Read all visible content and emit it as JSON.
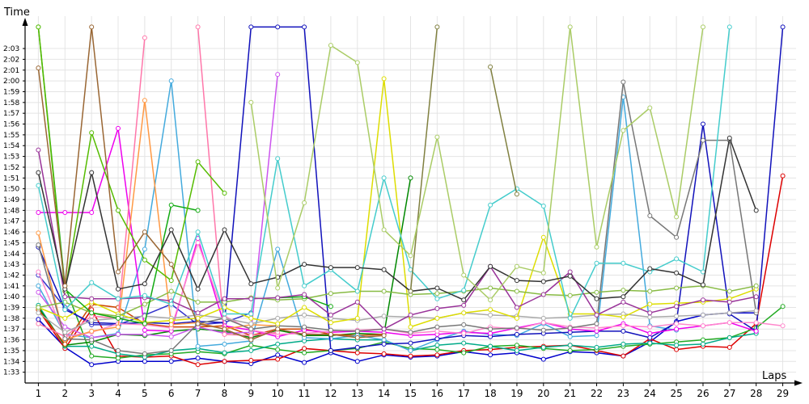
{
  "chart_data": {
    "type": "line",
    "xlabel": "Laps",
    "ylabel": "Time",
    "x": [
      1,
      2,
      3,
      4,
      5,
      6,
      7,
      8,
      9,
      10,
      11,
      12,
      13,
      14,
      15,
      16,
      17,
      18,
      19,
      20,
      21,
      22,
      23,
      24,
      25,
      26,
      27,
      28,
      29
    ],
    "y_tick_labels": [
      "1:33",
      "1:34",
      "1:35",
      "1:36",
      "1:37",
      "1:38",
      "1:39",
      "1:40",
      "1:41",
      "1:42",
      "1:43",
      "1:44",
      "1:45",
      "1:46",
      "1:47",
      "1:48",
      "1:49",
      "1:50",
      "1:51",
      "1:52",
      "1:53",
      "1:54",
      "1:55",
      "1:56",
      "1:57",
      "1:58",
      "1:59",
      "2:00",
      "2:01",
      "2:02",
      "2:03"
    ],
    "y_tick_values": [
      93,
      94,
      95,
      96,
      97,
      98,
      99,
      100,
      101,
      102,
      103,
      104,
      105,
      106,
      107,
      108,
      109,
      110,
      111,
      112,
      113,
      114,
      115,
      116,
      117,
      118,
      119,
      120,
      121,
      122,
      123
    ],
    "ylim": [
      92,
      126
    ],
    "xlim": [
      0.5,
      29.5
    ],
    "grid": true,
    "legend": "none",
    "series": [
      {
        "color": "#0000cc",
        "values": [
          97.9,
          95.3,
          93.7,
          94.0,
          94.0,
          94.0,
          94.3,
          94.0,
          93.8,
          94.6,
          93.9,
          94.8,
          94.0,
          94.6,
          94.4,
          94.5,
          94.9,
          94.6,
          94.8,
          94.2,
          94.9,
          94.8,
          94.5,
          95.8,
          97.7,
          98.3,
          98.5,
          98.5,
          null
        ]
      },
      {
        "color": "#dd0000",
        "values": [
          98.8,
          95.2,
          98.8,
          94.5,
          94.4,
          94.5,
          93.7,
          94.0,
          94.1,
          94.2,
          95.2,
          95.0,
          94.8,
          94.7,
          94.5,
          94.6,
          95.0,
          95.1,
          95.3,
          95.4,
          95.5,
          95.0,
          94.5,
          96.1,
          95.1,
          95.4,
          95.3,
          97.5,
          111.2
        ]
      },
      {
        "color": "#22aa22",
        "values": [
          125.0,
          101.0,
          94.5,
          94.3,
          94.6,
          94.7,
          94.9,
          94.7,
          95.5,
          95.1,
          94.8,
          95.0,
          95.2,
          95.8,
          95.2,
          95.1,
          94.8,
          95.4,
          95.5,
          95.2,
          95.0,
          95.1,
          95.4,
          95.6,
          95.8,
          96.0,
          96.2,
          97.1,
          99.1
        ]
      },
      {
        "color": "#00aa88",
        "values": [
          99.2,
          95.4,
          95.4,
          94.7,
          94.4,
          95.0,
          95.2,
          94.8,
          95.0,
          95.6,
          95.9,
          96.1,
          96.0,
          96.0,
          95.0,
          95.5,
          95.7,
          95.4,
          95.0,
          95.3,
          95.5,
          95.3,
          95.6,
          95.7,
          95.5,
          95.6,
          96.2,
          96.6,
          null
        ]
      },
      {
        "color": "#008800",
        "values": [
          99.0,
          95.5,
          95.8,
          96.5,
          96.4,
          96.8,
          97.0,
          96.8,
          96.2,
          96.9,
          96.4,
          96.4,
          96.6,
          96.5,
          111.0,
          null,
          null,
          null,
          null,
          null,
          null,
          null,
          null,
          null,
          null,
          null,
          null,
          null,
          null
        ]
      },
      {
        "color": "#cc4400",
        "values": [
          98.8,
          95.6,
          99.3,
          99.0,
          97.5,
          97.2,
          97.2,
          97.3,
          96.4,
          97.0,
          97.0,
          96.5,
          96.4,
          96.5,
          null,
          null,
          null,
          null,
          null,
          null,
          null,
          null,
          null,
          null,
          null,
          null,
          null,
          null,
          null
        ]
      },
      {
        "color": "#44aadd",
        "values": [
          101.0,
          96.5,
          96.2,
          96.6,
          104.4,
          120.0,
          95.4,
          95.6,
          95.9,
          104.4,
          96.2,
          96.1,
          96.4,
          96.0,
          95.0,
          96.0,
          96.8,
          96.5,
          96.4,
          97.5,
          96.3,
          96.4,
          118.5,
          97.3,
          96.9,
          null,
          null,
          null,
          null
        ]
      },
      {
        "color": "#3333cc",
        "values": [
          102.0,
          99.0,
          97.4,
          97.4,
          98.3,
          99.3,
          97.4,
          97.6,
          98.5,
          null,
          null,
          null,
          null,
          null,
          null,
          null,
          null,
          null,
          null,
          null,
          null,
          null,
          null,
          null,
          null,
          null,
          null,
          null,
          null
        ]
      },
      {
        "color": "#1111bb",
        "values": [
          104.6,
          98.8,
          97.6,
          97.5,
          97.6,
          97.5,
          97.7,
          97.6,
          125.0,
          125.0,
          125.0,
          95.0,
          95.3,
          95.6,
          95.7,
          96.1,
          96.4,
          96.3,
          96.5,
          96.6,
          96.7,
          96.8,
          96.8,
          96.2,
          97.6,
          116.0,
          98.4,
          96.8,
          125.0
        ]
      },
      {
        "color": "#cc55ee",
        "values": [
          100.4,
          97.2,
          96.2,
          96.5,
          96.5,
          96.3,
          97.2,
          96.6,
          96.7,
          120.6,
          null,
          null,
          null,
          null,
          null,
          null,
          null,
          null,
          null,
          null,
          null,
          null,
          null,
          null,
          null,
          null,
          null,
          null,
          null
        ]
      },
      {
        "color": "#ee00ee",
        "values": [
          107.8,
          107.8,
          107.8,
          115.6,
          96.9,
          96.8,
          105.4,
          97.3,
          96.9,
          96.3,
          96.9,
          96.7,
          96.8,
          96.7,
          96.4,
          96.5,
          96.7,
          96.6,
          97.1,
          97.6,
          97.0,
          96.8,
          97.5,
          96.6,
          97.0,
          97.3,
          97.6,
          96.8,
          null
        ]
      },
      {
        "color": "#ff88cc",
        "values": [
          102.3,
          96.3,
          96.7,
          97.5,
          97.4,
          97.1,
          105.0,
          98.2,
          96.9,
          96.5,
          96.6,
          96.8,
          96.9,
          97.0,
          96.6,
          96.8,
          96.6,
          97.2,
          97.0,
          97.6,
          97.2,
          97.1,
          97.3,
          97.2,
          97.5,
          97.3,
          97.6,
          97.6,
          97.3
        ]
      },
      {
        "color": "#ff9944",
        "values": [
          105.9,
          96.0,
          96.8,
          97.2,
          118.2,
          97.4,
          97.6,
          97.0,
          97.4,
          97.3,
          null,
          null,
          null,
          null,
          null,
          null,
          null,
          null,
          null,
          null,
          null,
          null,
          null,
          null,
          null,
          null,
          null,
          null,
          null
        ]
      },
      {
        "color": "#ff77aa",
        "values": [
          97.5,
          96.3,
          98.2,
          98.0,
          124.0,
          null,
          125.0,
          96.5,
          96.4,
          96.7,
          null,
          null,
          null,
          null,
          null,
          null,
          null,
          null,
          null,
          null,
          null,
          null,
          null,
          null,
          null,
          null,
          null,
          null,
          null
        ]
      },
      {
        "color": "#777777",
        "values": [
          104.8,
          96.1,
          96.0,
          95.0,
          94.7,
          95.0,
          97.5,
          98.0,
          97.0,
          97.3,
          97.2,
          96.9,
          96.8,
          97.0,
          96.7,
          97.2,
          97.4,
          97.0,
          97.1,
          96.9,
          97.1,
          97.5,
          119.9,
          107.5,
          105.5,
          114.5,
          114.5,
          98.5,
          null
        ]
      },
      {
        "color": "#aaaaaa",
        "values": [
          98.5,
          96.7,
          97.8,
          98.0,
          98.2,
          98.0,
          98.3,
          98.0,
          97.5,
          98.0,
          98.3,
          98.0,
          97.8,
          98.2,
          98.1,
          98.0,
          98.5,
          98.3,
          98.2,
          98.0,
          98.1,
          98.3,
          98.4,
          98.1,
          98.2,
          98.3,
          98.5,
          98.7,
          null
        ]
      },
      {
        "color": "#dddd00",
        "values": [
          99.0,
          98.0,
          99.5,
          98.4,
          97.6,
          97.8,
          98.0,
          99.0,
          98.0,
          97.5,
          99.0,
          97.6,
          98.0,
          120.2,
          97.2,
          98.0,
          98.5,
          98.8,
          98.0,
          105.5,
          98.4,
          98.4,
          98.1,
          99.3,
          99.4,
          99.5,
          99.8,
          100.7,
          null
        ]
      },
      {
        "color": "#88bb44",
        "values": [
          99.0,
          99.5,
          98.5,
          98.2,
          99.3,
          100.5,
          99.5,
          99.5,
          99.9,
          99.7,
          99.8,
          100.3,
          100.5,
          100.5,
          100.2,
          100.3,
          100.5,
          100.8,
          100.5,
          100.2,
          100.1,
          100.4,
          100.6,
          100.5,
          100.8,
          101.0,
          100.5,
          101.0,
          null
        ]
      },
      {
        "color": "#11aa11",
        "values": [
          null,
          100.7,
          98.5,
          98.0,
          97.5,
          108.5,
          108.0,
          null,
          null,
          99.9,
          100.0,
          99.1,
          null,
          null,
          null,
          null,
          null,
          null,
          null,
          null,
          null,
          null,
          null,
          null,
          null,
          null,
          null,
          null,
          null
        ]
      },
      {
        "color": "#55bb00",
        "values": [
          125.0,
          100.5,
          115.2,
          108.0,
          103.4,
          101.5,
          112.5,
          109.6,
          null,
          null,
          null,
          null,
          null,
          null,
          null,
          null,
          null,
          null,
          null,
          null,
          null,
          null,
          null,
          null,
          null,
          null,
          null,
          null,
          null
        ]
      },
      {
        "color": "#993399",
        "values": [
          113.6,
          100.0,
          99.8,
          99.8,
          99.9,
          99.6,
          98.5,
          99.8,
          99.8,
          99.9,
          100.2,
          98.3,
          99.5,
          97.0,
          98.3,
          98.9,
          99.2,
          102.8,
          99.0,
          100.2,
          102.3,
          98.3,
          99.5,
          98.5,
          99.1,
          99.7,
          99.5,
          100.0,
          null
        ]
      },
      {
        "color": "#44cccc",
        "values": [
          110.3,
          98.8,
          101.3,
          99.8,
          100.1,
          99.3,
          106.0,
          98.4,
          98.4,
          112.8,
          101.0,
          102.5,
          100.5,
          111.0,
          102.5,
          99.8,
          100.6,
          108.5,
          110.0,
          108.4,
          98.0,
          103.1,
          103.1,
          102.3,
          103.5,
          102.3,
          125.0,
          null,
          null
        ]
      },
      {
        "color": "#333333",
        "values": [
          111.5,
          100.7,
          111.5,
          100.7,
          101.2,
          106.2,
          100.7,
          106.2,
          101.2,
          101.8,
          103.0,
          102.7,
          102.7,
          102.5,
          100.5,
          100.8,
          99.7,
          102.8,
          101.5,
          101.4,
          101.9,
          99.8,
          100.0,
          102.6,
          102.2,
          101.1,
          114.7,
          108.0,
          null
        ]
      },
      {
        "color": "#808040",
        "values": [
          null,
          null,
          null,
          null,
          null,
          null,
          null,
          null,
          null,
          null,
          null,
          null,
          null,
          null,
          100.5,
          125.0,
          null,
          121.3,
          109.5,
          null,
          null,
          null,
          null,
          null,
          null,
          null,
          null,
          null,
          null
        ]
      },
      {
        "color": "#aacc66",
        "values": [
          null,
          null,
          null,
          null,
          null,
          null,
          null,
          null,
          118.0,
          100.8,
          108.7,
          123.3,
          121.7,
          106.2,
          103.8,
          114.8,
          102.0,
          99.7,
          102.8,
          102.2,
          125.0,
          104.6,
          115.4,
          117.5,
          107.4,
          125.0,
          null,
          null,
          null
        ]
      },
      {
        "color": "#996633",
        "values": [
          121.2,
          101.0,
          125.0,
          102.3,
          106.0,
          103.0,
          97.5,
          97.0,
          96.0,
          97.0,
          96.5,
          96.5,
          96.2,
          96.4,
          null,
          null,
          null,
          null,
          null,
          null,
          null,
          null,
          null,
          null,
          null,
          null,
          null,
          null,
          null
        ]
      }
    ]
  }
}
